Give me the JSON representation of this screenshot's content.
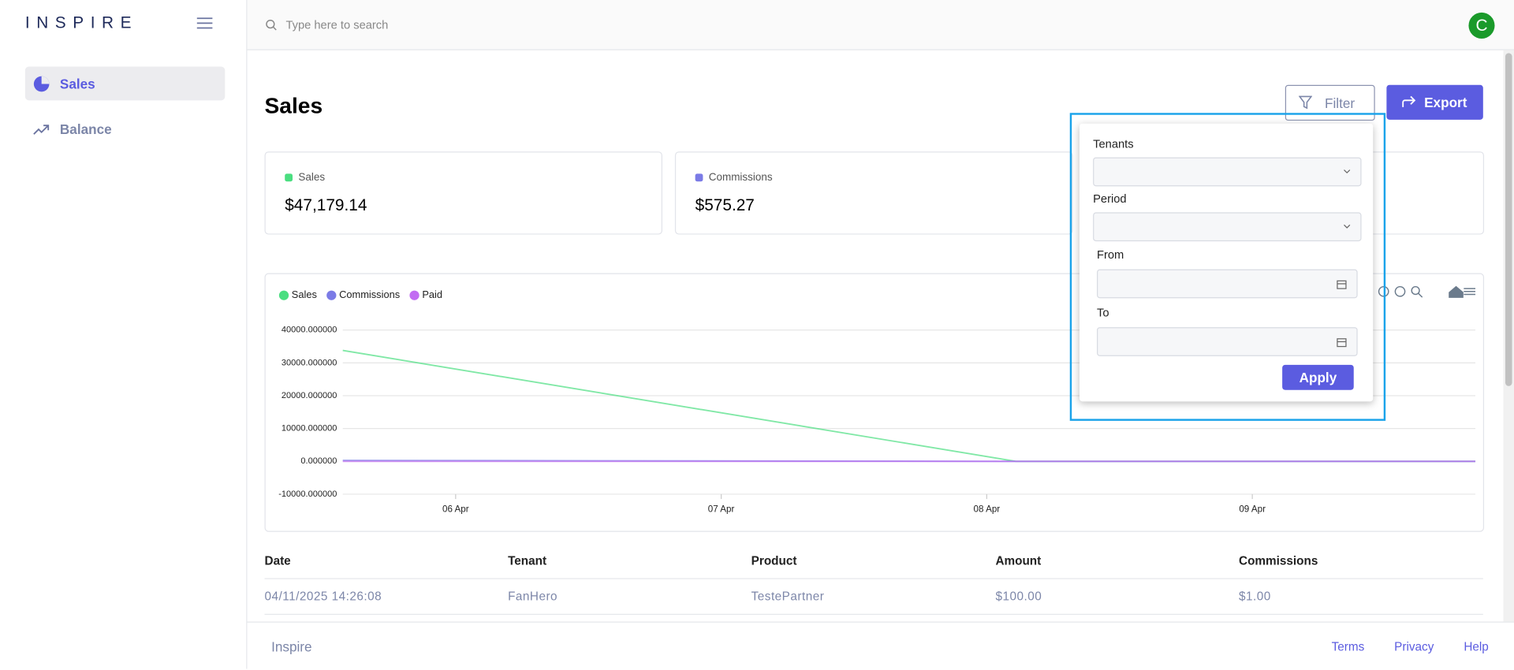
{
  "sidebar": {
    "logo": "INSPIRE",
    "nav": [
      "Sales",
      "Balance"
    ]
  },
  "header": {
    "search_placeholder": "Type here to search",
    "avatar": "C"
  },
  "page": {
    "title": "Sales",
    "filter_button": "Filter",
    "export_button": "Export"
  },
  "cards": [
    {
      "label": "Sales",
      "value": "$47,179.14"
    },
    {
      "label": "Commissions",
      "value": "$575.27"
    }
  ],
  "filter": {
    "fields": [
      "Tenants",
      "Period",
      "From",
      "To"
    ],
    "apply": "Apply"
  },
  "chart": {
    "type": "line",
    "x": [
      5.575,
      8.11,
      9.84
    ],
    "xlim": [
      5.575,
      9.84
    ],
    "xticks": [
      {
        "value": 6,
        "label": "06 Apr"
      },
      {
        "value": 7,
        "label": "07 Apr"
      },
      {
        "value": 8,
        "label": "08 Apr"
      },
      {
        "value": 9,
        "label": "09 Apr"
      }
    ],
    "ylim": [
      -10000,
      40000
    ],
    "yticks": [
      {
        "value": 40000,
        "label": "40000.000000"
      },
      {
        "value": 30000,
        "label": "30000.000000"
      },
      {
        "value": 20000,
        "label": "20000.000000"
      },
      {
        "value": 10000,
        "label": "10000.000000"
      },
      {
        "value": 0,
        "label": "0.000000"
      },
      {
        "value": -10000,
        "label": "-10000.000000"
      }
    ],
    "grid": true,
    "series": [
      {
        "name": "Sales",
        "color": "#4ade80",
        "values": [
          33800,
          0,
          0
        ]
      },
      {
        "name": "Commissions",
        "color": "#7b7be6",
        "values": [
          300,
          0,
          0
        ]
      },
      {
        "name": "Paid",
        "color": "#c26cf2",
        "values": [
          0,
          0,
          0
        ]
      }
    ]
  },
  "table": {
    "columns": [
      "Date",
      "Tenant",
      "Product",
      "Amount",
      "Commissions"
    ],
    "rows": [
      [
        "04/11/2025 14:26:08",
        "FanHero",
        "TestePartner",
        "$100.00",
        "$1.00"
      ]
    ]
  },
  "footer": {
    "brand": "Inspire",
    "links": [
      "Terms",
      "Privacy",
      "Help"
    ]
  }
}
